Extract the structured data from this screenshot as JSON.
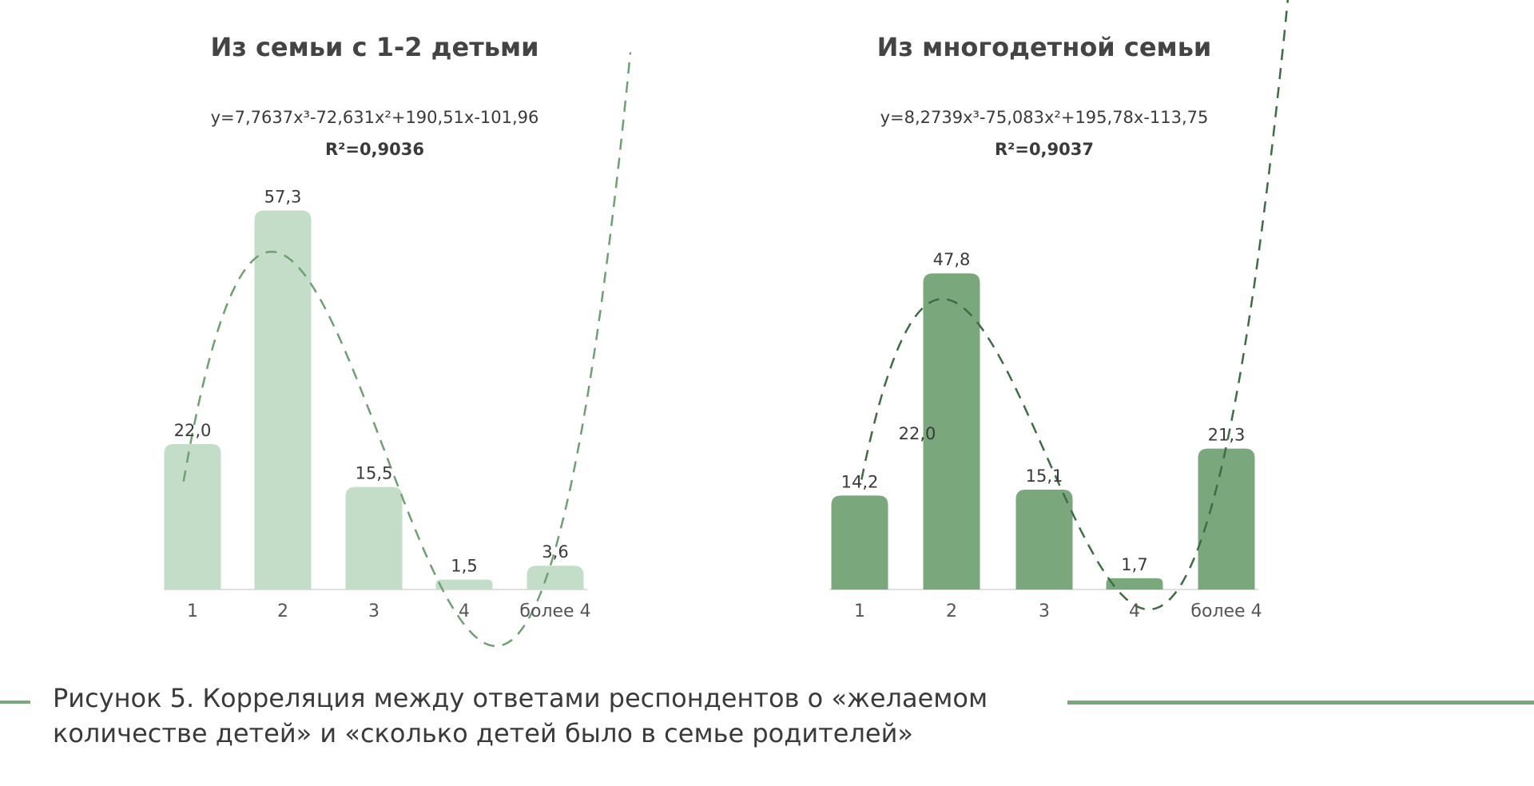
{
  "colors": {
    "light_bar": "#c3ddc8",
    "dark_bar": "#7aa87c",
    "light_trend": "#6f9f72",
    "dark_trend": "#3f6b45",
    "caption_line": "#7aa87c",
    "axis": "#e0e0e0"
  },
  "caption": {
    "line1": "Рисунок 5. Корреляция между ответами респондентов о «желаемом",
    "line2": "количестве детей» и «сколько детей было в семье родителей»"
  },
  "chart_data": [
    {
      "type": "bar",
      "title": "Из семьи с 1-2 детьми",
      "equation": "y=7,7637x³-72,631x²+190,51x-101,96",
      "r2": "R²=0,9036",
      "categories": [
        "1",
        "2",
        "3",
        "4",
        "более 4"
      ],
      "values": [
        22.0,
        57.3,
        15.5,
        1.5,
        3.6
      ],
      "value_labels": [
        "22,0",
        "57,3",
        "15,5",
        "1,5",
        "3,6"
      ],
      "trendline": {
        "type": "polynomial",
        "order": 3,
        "coefficients": [
          7.7637,
          -72.631,
          190.51,
          -101.96
        ],
        "style": "dashed"
      },
      "ylim": [
        0,
        60
      ],
      "grid": false
    },
    {
      "type": "bar",
      "title": "Из многодетной семьи",
      "equation": "y=8,2739x³-75,083x²+195,78x-113,75",
      "r2": "R²=0,9037",
      "categories": [
        "1",
        "2",
        "3",
        "4",
        "более 4"
      ],
      "values": [
        14.2,
        47.8,
        15.1,
        1.7,
        21.3
      ],
      "value_labels": [
        "14,2",
        "47,8",
        "15,1",
        "1,7",
        "21,3"
      ],
      "extra_labels": [
        "22,0"
      ],
      "trendline": {
        "type": "polynomial",
        "order": 3,
        "coefficients": [
          8.2739,
          -75.083,
          195.78,
          -113.75
        ],
        "style": "dashed"
      },
      "ylim": [
        0,
        60
      ],
      "grid": false
    }
  ]
}
